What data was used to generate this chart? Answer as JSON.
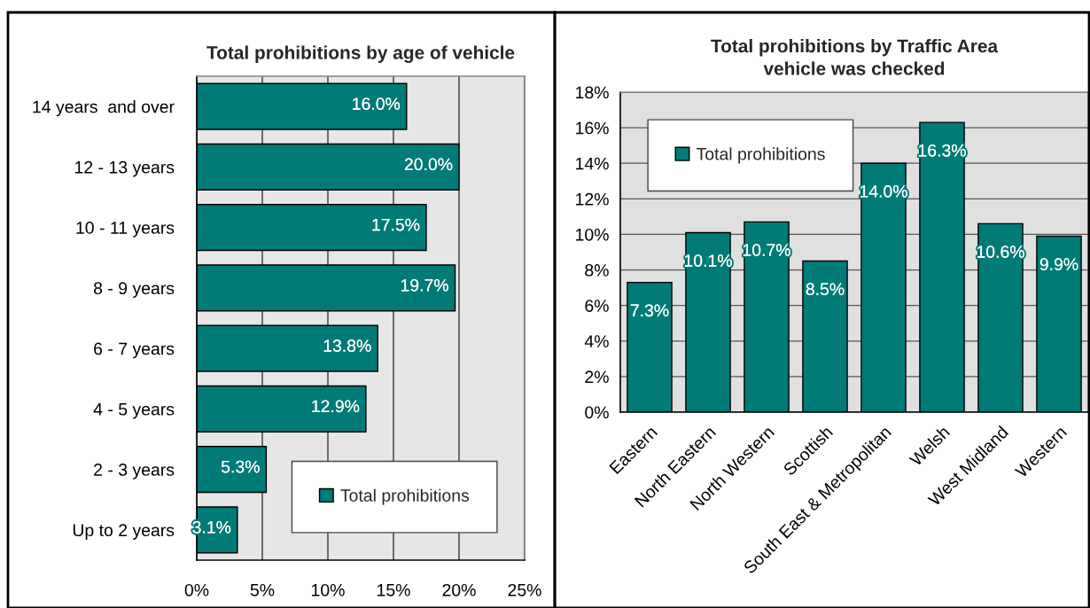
{
  "chart_data": [
    {
      "type": "bar",
      "title": "Total prohibitions by age of vehicle",
      "orientation": "horizontal",
      "categories": [
        "14 years  and over",
        "12 - 13 years",
        "10 - 11 years",
        "8 - 9 years",
        "6 - 7 years",
        "4 - 5 years",
        "2 - 3 years",
        "Up to 2 years"
      ],
      "series": [
        {
          "name": "Total prohibitions",
          "color": "#007b78",
          "values": [
            16.0,
            20.0,
            17.5,
            19.7,
            13.8,
            12.9,
            5.3,
            3.1
          ],
          "value_labels": [
            "16.0%",
            "20.0%",
            "17.5%",
            "19.7%",
            "13.8%",
            "12.9%",
            "5.3%",
            "3.1%"
          ]
        }
      ],
      "xlim": [
        0,
        25
      ],
      "xticks": [
        {
          "value": 0,
          "label": "0%"
        },
        {
          "value": 5,
          "label": "5%"
        },
        {
          "value": 10,
          "label": "10%"
        },
        {
          "value": 15,
          "label": "15%"
        },
        {
          "value": 20,
          "label": "20%"
        },
        {
          "value": 25,
          "label": "25%"
        }
      ],
      "grid": "x",
      "legend": "bottom right"
    },
    {
      "type": "bar",
      "title": "Total prohibitions by Traffic Area\nvehicle was checked",
      "categories": [
        "Eastern",
        "North Eastern",
        "North Western",
        "Scottish",
        "South East & Metropolitan",
        "Welsh",
        "West Midland",
        "Western"
      ],
      "series": [
        {
          "name": "Total prohibitions",
          "color": "#007b78",
          "values": [
            7.3,
            10.1,
            10.7,
            8.5,
            14.0,
            16.3,
            10.6,
            9.9
          ],
          "value_labels": [
            "7.3%",
            "10.1%",
            "10.7%",
            "8.5%",
            "14.0%",
            "16.3%",
            "10.6%",
            "9.9%"
          ]
        }
      ],
      "ylim": [
        0,
        18
      ],
      "yticks": [
        {
          "value": 0,
          "label": "0%"
        },
        {
          "value": 2,
          "label": "2%"
        },
        {
          "value": 4,
          "label": "4%"
        },
        {
          "value": 6,
          "label": "6%"
        },
        {
          "value": 8,
          "label": "8%"
        },
        {
          "value": 10,
          "label": "10%"
        },
        {
          "value": 12,
          "label": "12%"
        },
        {
          "value": 14,
          "label": "14%"
        },
        {
          "value": 16,
          "label": "16%"
        },
        {
          "value": 18,
          "label": "18%"
        }
      ],
      "grid": "y",
      "legend": "top left"
    }
  ]
}
